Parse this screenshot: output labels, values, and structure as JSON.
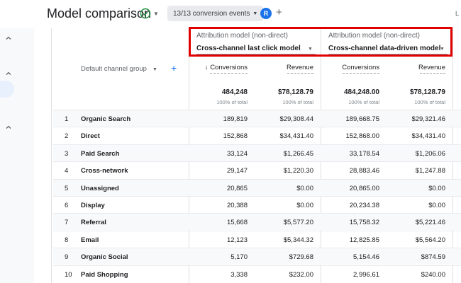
{
  "header": {
    "title": "Model comparison",
    "events_chip": "13/13 conversion events",
    "avatar_letter": "R",
    "clipped_text": "L"
  },
  "columns": {
    "left_model": {
      "label": "Attribution model (non-direct)",
      "value": "Cross-channel last click model"
    },
    "right_model": {
      "label": "Attribution model (non-direct)",
      "value": "Cross-channel data-driven model"
    },
    "dimension": "Default channel group",
    "metrics": [
      {
        "label": "Conversions",
        "sorted": true,
        "sort_arrow": "↓"
      },
      {
        "label": "Revenue"
      },
      {
        "label": "Conversions"
      },
      {
        "label": "Revenue"
      }
    ]
  },
  "totals": [
    {
      "value": "484,248",
      "sub": "100% of total"
    },
    {
      "value": "$78,128.79",
      "sub": "100% of total"
    },
    {
      "value": "484,248.00",
      "sub": "100% of total"
    },
    {
      "value": "$78,128.79",
      "sub": "100% of total"
    }
  ],
  "rows": [
    {
      "idx": "1",
      "name": "Organic Search",
      "c1": "189,819",
      "r1": "$29,308.44",
      "c2": "189,668.75",
      "r2": "$29,321.46"
    },
    {
      "idx": "2",
      "name": "Direct",
      "c1": "152,868",
      "r1": "$34,431.40",
      "c2": "152,868.00",
      "r2": "$34,431.40"
    },
    {
      "idx": "3",
      "name": "Paid Search",
      "c1": "33,124",
      "r1": "$1,266.45",
      "c2": "33,178.54",
      "r2": "$1,206.06"
    },
    {
      "idx": "4",
      "name": "Cross-network",
      "c1": "29,147",
      "r1": "$1,220.30",
      "c2": "28,883.46",
      "r2": "$1,247.88"
    },
    {
      "idx": "5",
      "name": "Unassigned",
      "c1": "20,865",
      "r1": "$0.00",
      "c2": "20,865.00",
      "r2": "$0.00"
    },
    {
      "idx": "6",
      "name": "Display",
      "c1": "20,388",
      "r1": "$0.00",
      "c2": "20,234.38",
      "r2": "$0.00"
    },
    {
      "idx": "7",
      "name": "Referral",
      "c1": "15,668",
      "r1": "$5,577.20",
      "c2": "15,758.32",
      "r2": "$5,221.46"
    },
    {
      "idx": "8",
      "name": "Email",
      "c1": "12,123",
      "r1": "$5,344.32",
      "c2": "12,825.85",
      "r2": "$5,564.20"
    },
    {
      "idx": "9",
      "name": "Organic Social",
      "c1": "5,170",
      "r1": "$729.68",
      "c2": "5,154.46",
      "r2": "$874.59"
    },
    {
      "idx": "10",
      "name": "Paid Shopping",
      "c1": "3,338",
      "r1": "$232.00",
      "c2": "2,996.61",
      "r2": "$240.00"
    }
  ],
  "colors": {
    "highlight_border": "#e00000",
    "accent": "#1a73e8",
    "check": "#1e8e3e"
  }
}
